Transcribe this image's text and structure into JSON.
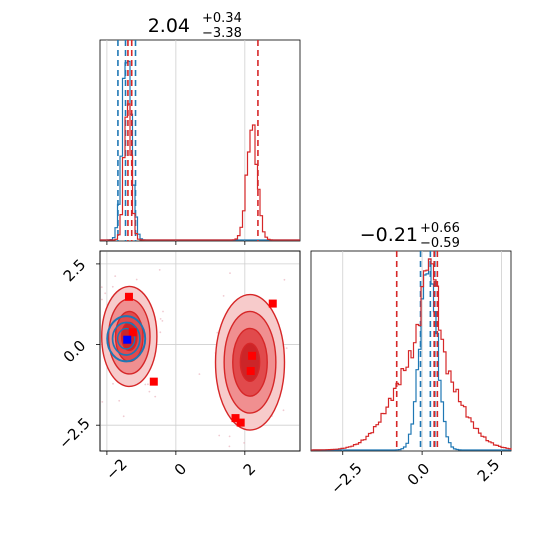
{
  "chart_data": {
    "type": "corner-plot",
    "colors": {
      "red": "#d62728",
      "blue": "#1f77b4",
      "grid": "#cfcfcf",
      "square_red": "#ff0000",
      "square_blue": "#0000ff"
    },
    "panels": [
      {
        "id": "hist-x",
        "kind": "histogram",
        "title": {
          "main": "2.04",
          "sup": "+0.34",
          "sub": "−3.38"
        },
        "xlim": [
          -2.2,
          3.6
        ],
        "xticks": [
          -2,
          0,
          2
        ],
        "show_tick_labels": false,
        "grid": true,
        "series": [
          {
            "color_key": "blue",
            "quantiles": [
              -1.68,
              -1.46,
              -1.17
            ],
            "components": [
              {
                "center": -1.42,
                "sigma": 0.13,
                "amp": 1.0
              }
            ]
          },
          {
            "color_key": "red",
            "quantiles": [
              -1.39,
              -1.28,
              2.38
            ],
            "components": [
              {
                "center": -1.4,
                "sigma": 0.1,
                "amp": 0.74
              },
              {
                "center": 2.21,
                "sigma": 0.15,
                "amp": 0.59
              }
            ]
          }
        ]
      },
      {
        "id": "scatter-xy",
        "kind": "2d-density",
        "xlim": [
          -2.2,
          3.6
        ],
        "ylim": [
          -3.3,
          2.9
        ],
        "xticks": [
          -2,
          0,
          2
        ],
        "yticks": [
          -2.5,
          0.0,
          2.5
        ],
        "xtick_labels": [
          "−2",
          "0",
          "2"
        ],
        "ytick_labels": [
          "−2.5",
          "0.0",
          "2.5"
        ],
        "grid": true,
        "red_modes": [
          {
            "cx": -1.35,
            "cy": 0.25,
            "rx": 0.8,
            "ry": 1.55
          },
          {
            "cx": 2.15,
            "cy": -0.55,
            "rx": 1.0,
            "ry": 2.1
          }
        ],
        "blue_mode": {
          "cx": -1.44,
          "cy": 0.18,
          "rx": 0.55,
          "ry": 0.7
        },
        "red_points": [
          [
            -1.36,
            1.48
          ],
          [
            -1.25,
            0.38
          ],
          [
            -0.64,
            -1.15
          ],
          [
            2.21,
            -0.35
          ],
          [
            2.17,
            -0.82
          ],
          [
            1.73,
            -2.28
          ],
          [
            1.88,
            -2.42
          ],
          [
            2.81,
            1.27
          ]
        ],
        "blue_points": [
          [
            -1.41,
            0.15
          ]
        ]
      },
      {
        "id": "hist-y",
        "kind": "histogram",
        "title": {
          "main": "−0.21",
          "sup": "+0.66",
          "sub": "−0.59"
        },
        "xlim": [
          -3.5,
          2.8
        ],
        "xticks": [
          -2.5,
          0.0,
          2.5
        ],
        "xtick_labels": [
          "−2.5",
          "0.0",
          "2.5"
        ],
        "grid": true,
        "series": [
          {
            "color_key": "blue",
            "quantiles": [
              -0.05,
              0.26,
              0.4
            ],
            "components": [
              {
                "center": 0.2,
                "sigma": 0.26,
                "amp": 1.0
              }
            ]
          },
          {
            "color_key": "red",
            "quantiles": [
              -0.8,
              0.38,
              0.48
            ],
            "components": [
              {
                "center": 0.1,
                "sigma": 0.9,
                "amp": 0.55
              },
              {
                "center": 0.25,
                "sigma": 0.22,
                "amp": 0.5
              }
            ]
          }
        ]
      }
    ]
  }
}
